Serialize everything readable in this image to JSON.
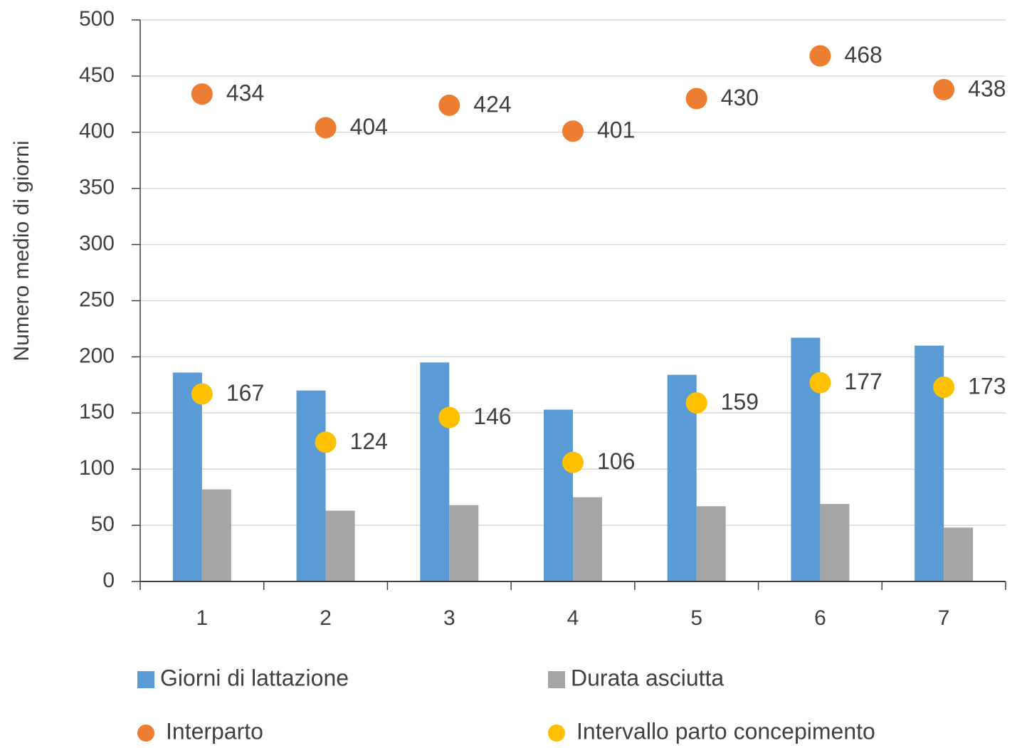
{
  "chart_data": {
    "type": "bar",
    "ylabel": "Numero medio di giorni",
    "categories": [
      "1",
      "2",
      "3",
      "4",
      "5",
      "6",
      "7"
    ],
    "ylim": [
      0,
      500
    ],
    "yticks": [
      0,
      50,
      100,
      150,
      200,
      250,
      300,
      350,
      400,
      450,
      500
    ],
    "grid": true,
    "series": [
      {
        "name": "Giorni di lattazione",
        "type": "bar",
        "color": "#5b9bd5",
        "values": [
          186,
          170,
          195,
          153,
          184,
          217,
          210
        ]
      },
      {
        "name": "Durata asciutta",
        "type": "bar",
        "color": "#a5a5a5",
        "values": [
          82,
          63,
          68,
          75,
          67,
          69,
          48
        ]
      },
      {
        "name": "Interparto",
        "type": "scatter",
        "color": "#ed7d31",
        "values": [
          434,
          404,
          424,
          401,
          430,
          468,
          438
        ]
      },
      {
        "name": "Intervallo parto concepimento",
        "type": "scatter",
        "color": "#ffc000",
        "values": [
          167,
          124,
          146,
          106,
          159,
          177,
          173
        ]
      }
    ]
  }
}
